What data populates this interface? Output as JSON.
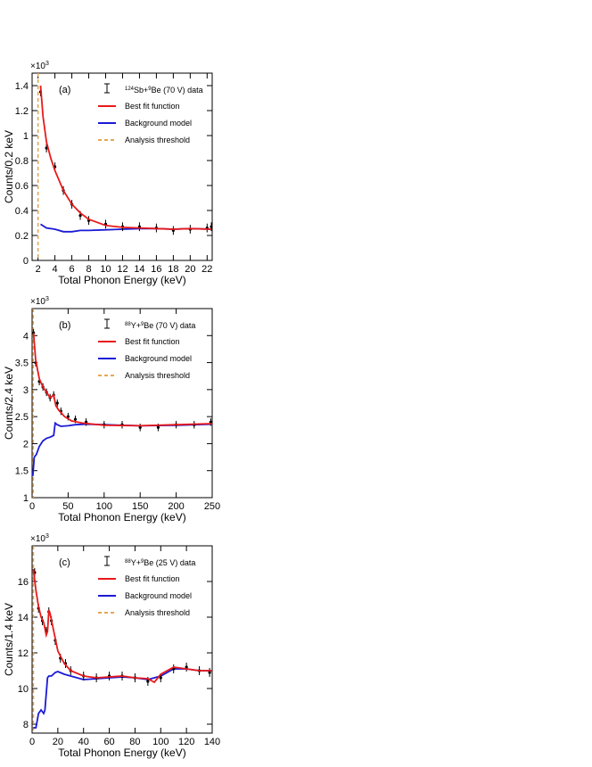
{
  "chart_data": [
    {
      "type": "scatter",
      "panel_label": "(a)",
      "exponent_label": "×10",
      "exponent_power": "3",
      "xlabel": "Total Phonon Energy (keV)",
      "ylabel": "Counts/0.2 keV",
      "xlim": [
        1.3,
        22.6
      ],
      "ylim": [
        0,
        1.5
      ],
      "xticks": [
        2,
        4,
        6,
        8,
        10,
        12,
        14,
        16,
        18,
        20,
        22
      ],
      "xtick_labels": [
        "2",
        "4",
        "6",
        "8",
        "10",
        "12",
        "14",
        "16",
        "18",
        "20",
        "22"
      ],
      "yticks": [
        0,
        0.2,
        0.4,
        0.6,
        0.8,
        1,
        1.2,
        1.4
      ],
      "ytick_labels": [
        "0",
        "0.2",
        "0.4",
        "0.6",
        "0.8",
        "1",
        "1.2",
        "1.4"
      ],
      "threshold": 2.0,
      "legend": {
        "data_label": {
          "sup1": "124",
          "main1": "Sb+",
          "sup2": "9",
          "main2": "Be (70 V) data"
        },
        "fit_label": "Best fit function",
        "bkg_label": "Background model",
        "threshold_label": "Analysis threshold"
      },
      "colors": {
        "data": "#000000",
        "fit": "#e8191a",
        "bkg": "#1a1ad6",
        "threshold": "#e3a857"
      },
      "data_points": {
        "x": [
          2.3,
          3.0,
          4.0,
          5.0,
          6.0,
          7.0,
          8.0,
          10.0,
          12.0,
          14.0,
          16.0,
          18.0,
          20.0,
          22.0,
          22.5
        ],
        "y": [
          1.35,
          0.9,
          0.75,
          0.56,
          0.45,
          0.36,
          0.32,
          0.29,
          0.27,
          0.27,
          0.26,
          0.24,
          0.25,
          0.26,
          0.27
        ],
        "yerr": 0.035
      },
      "fit": {
        "x": [
          2.3,
          2.6,
          3.0,
          3.5,
          4.0,
          5.0,
          6.0,
          7.0,
          8.0,
          10.0,
          12.0,
          14.0,
          16.0,
          18.0,
          20.0,
          22.5
        ],
        "y": [
          1.4,
          1.15,
          0.95,
          0.82,
          0.72,
          0.56,
          0.45,
          0.38,
          0.33,
          0.28,
          0.265,
          0.26,
          0.255,
          0.25,
          0.255,
          0.25
        ]
      },
      "background": {
        "x": [
          2.3,
          3.0,
          4.0,
          5.0,
          6.0,
          7.0,
          8.0,
          10.0,
          12.0,
          14.0,
          16.0,
          18.0,
          20.0,
          22.5
        ],
        "y": [
          0.29,
          0.26,
          0.25,
          0.23,
          0.23,
          0.24,
          0.24,
          0.245,
          0.25,
          0.255,
          0.255,
          0.25,
          0.255,
          0.25
        ]
      }
    },
    {
      "type": "scatter",
      "panel_label": "(b)",
      "exponent_label": "×10",
      "exponent_power": "3",
      "xlabel": "Total Phonon Energy (keV)",
      "ylabel": "Counts/2.4 keV",
      "xlim": [
        0,
        250
      ],
      "ylim": [
        1.0,
        4.5
      ],
      "xticks": [
        0,
        50,
        100,
        150,
        200,
        250
      ],
      "xtick_labels": [
        "0",
        "50",
        "100",
        "150",
        "200",
        "250"
      ],
      "yticks": [
        1,
        1.5,
        2,
        2.5,
        3,
        3.5,
        4
      ],
      "ytick_labels": [
        "1",
        "1.5",
        "2",
        "2.5",
        "3",
        "3.5",
        "4"
      ],
      "threshold": 1.5,
      "legend": {
        "data_label": {
          "sup1": "88",
          "main1": "Y+",
          "sup2": "9",
          "main2": "Be (70 V) data"
        },
        "fit_label": "Best fit function",
        "bkg_label": "Background model",
        "threshold_label": "Analysis threshold"
      },
      "colors": {
        "data": "#000000",
        "fit": "#e8191a",
        "bkg": "#1a1ad6",
        "threshold": "#e3a857"
      },
      "data_points": {
        "x": [
          2,
          5,
          10,
          15,
          20,
          25,
          30,
          35,
          40,
          50,
          60,
          75,
          100,
          125,
          150,
          175,
          200,
          225,
          248
        ],
        "y": [
          4.05,
          3.5,
          3.15,
          3.05,
          2.95,
          2.85,
          2.9,
          2.75,
          2.6,
          2.5,
          2.45,
          2.4,
          2.35,
          2.35,
          2.3,
          2.3,
          2.35,
          2.35,
          2.4
        ],
        "yerr": 0.07
      },
      "fit": {
        "x": [
          2,
          5,
          10,
          15,
          20,
          25,
          30,
          33,
          37,
          45,
          55,
          70,
          100,
          150,
          200,
          250
        ],
        "y": [
          4.05,
          3.55,
          3.2,
          3.05,
          2.95,
          2.85,
          2.9,
          2.7,
          2.62,
          2.5,
          2.42,
          2.38,
          2.34,
          2.33,
          2.35,
          2.37
        ]
      },
      "background": {
        "x": [
          1,
          3,
          6,
          10,
          15,
          20,
          25,
          30,
          32,
          35,
          40,
          50,
          60,
          75,
          100,
          150,
          200,
          250
        ],
        "y": [
          1.4,
          1.75,
          1.8,
          1.95,
          2.05,
          2.1,
          2.12,
          2.15,
          2.38,
          2.35,
          2.32,
          2.33,
          2.35,
          2.36,
          2.35,
          2.33,
          2.34,
          2.36
        ]
      }
    },
    {
      "type": "scatter",
      "panel_label": "(c)",
      "exponent_label": "×10",
      "exponent_power": "3",
      "xlabel": "Total Phonon Energy (keV)",
      "ylabel": "Counts/1.4 keV",
      "xlim": [
        0,
        140
      ],
      "ylim": [
        7.5,
        18
      ],
      "xticks": [
        0,
        20,
        40,
        60,
        80,
        100,
        120,
        140
      ],
      "xtick_labels": [
        "0",
        "20",
        "40",
        "60",
        "80",
        "100",
        "120",
        "140"
      ],
      "yticks": [
        8,
        10,
        12,
        14,
        16
      ],
      "ytick_labels": [
        "8",
        "10",
        "12",
        "14",
        "16"
      ],
      "threshold": 1.0,
      "legend": {
        "data_label": {
          "sup1": "88",
          "main1": "Y+",
          "sup2": "9",
          "main2": "Be (25 V) data"
        },
        "fit_label": "Best fit function",
        "bkg_label": "Background model",
        "threshold_label": "Analysis threshold"
      },
      "colors": {
        "data": "#000000",
        "fit": "#e8191a",
        "bkg": "#1a1ad6",
        "threshold": "#e3a857"
      },
      "data_points": {
        "x": [
          2,
          5,
          8,
          11,
          13,
          15,
          18,
          22,
          26,
          30,
          40,
          50,
          60,
          70,
          80,
          90,
          100,
          110,
          120,
          130,
          138
        ],
        "y": [
          16.5,
          14.5,
          13.8,
          13.2,
          14.3,
          13.8,
          12.7,
          11.7,
          11.4,
          11.0,
          10.7,
          10.6,
          10.7,
          10.7,
          10.6,
          10.4,
          10.6,
          11.1,
          11.2,
          11.0,
          10.9
        ],
        "yerr": 0.25
      },
      "fit": {
        "x": [
          1,
          3,
          5,
          7,
          9,
          11,
          12,
          13,
          14,
          16,
          18,
          20,
          25,
          30,
          40,
          50,
          60,
          70,
          80,
          90,
          95,
          100,
          110,
          120,
          130,
          140
        ],
        "y": [
          16.7,
          15.5,
          14.6,
          14.0,
          13.7,
          13.0,
          13.2,
          14.4,
          14.2,
          13.5,
          12.8,
          12.1,
          11.4,
          11.0,
          10.7,
          10.6,
          10.65,
          10.7,
          10.6,
          10.55,
          10.35,
          10.8,
          11.2,
          11.1,
          11.0,
          11.0
        ]
      },
      "background": {
        "x": [
          1,
          3,
          5,
          7,
          9,
          10,
          12,
          13,
          15,
          18,
          20,
          25,
          30,
          40,
          50,
          60,
          70,
          80,
          90,
          100,
          110,
          120,
          130,
          140
        ],
        "y": [
          7.8,
          7.8,
          8.6,
          8.8,
          8.6,
          8.8,
          10.6,
          10.7,
          10.7,
          10.9,
          10.95,
          10.8,
          10.7,
          10.5,
          10.55,
          10.6,
          10.65,
          10.6,
          10.5,
          10.7,
          11.1,
          11.1,
          11.0,
          11.0
        ]
      }
    }
  ]
}
